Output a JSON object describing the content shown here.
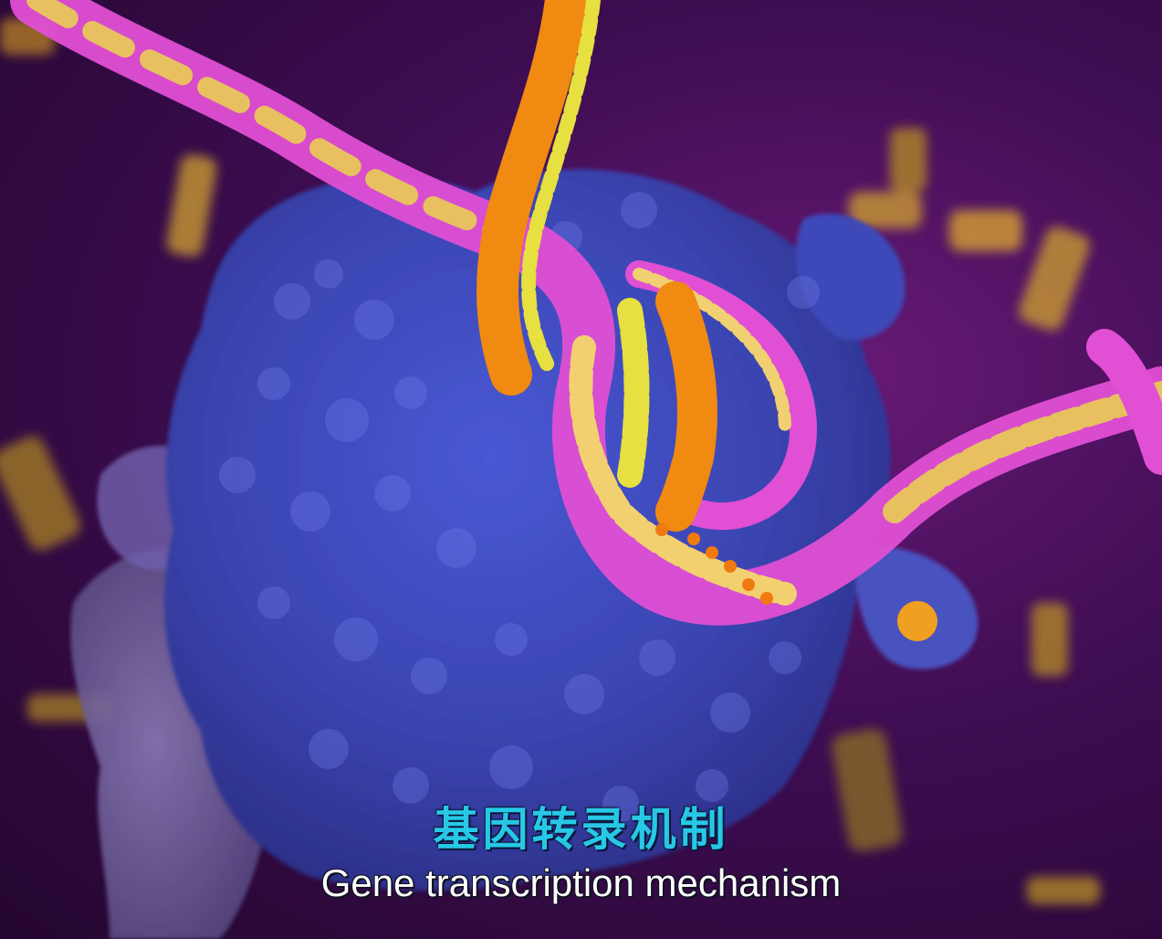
{
  "video": {
    "subtitle_cn": "基因转录机制",
    "subtitle_en": "Gene transcription mechanism"
  },
  "scene": {
    "background_color": "#3e0d52",
    "protein_colors": [
      "#3f4bbf",
      "#5a3fb0",
      "#6c5aa8"
    ],
    "dna_strand_colors": [
      "#e052d8",
      "#f08a10",
      "#f0c860",
      "#e6e040"
    ]
  }
}
